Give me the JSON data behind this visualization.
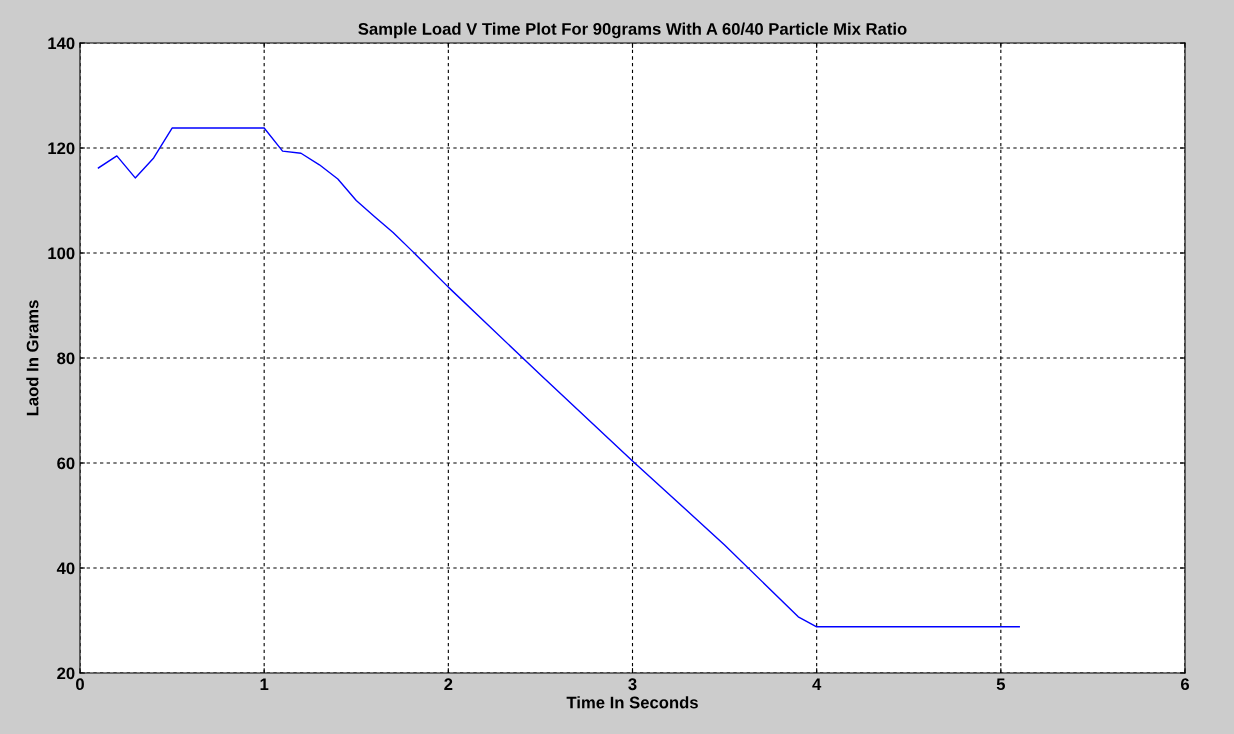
{
  "chart_data": {
    "type": "line",
    "title": "Sample Load V Time Plot For 90grams With A 60/40 Particle Mix Ratio",
    "xlabel": "Time In Seconds",
    "ylabel": "Laod In Grams",
    "x": [
      0.1,
      0.2,
      0.3,
      0.4,
      0.5,
      1.0,
      1.1,
      1.2,
      1.3,
      1.4,
      1.5,
      1.6,
      1.7,
      1.8,
      1.9,
      2.0,
      2.5,
      3.0,
      3.5,
      3.9,
      4.0,
      5.1
    ],
    "series": [
      {
        "color": "#0000ff",
        "values": [
          116.2,
          118.5,
          114.3,
          118.1,
          123.8,
          123.8,
          119.4,
          119.0,
          116.8,
          114.1,
          110.0,
          106.9,
          103.9,
          100.5,
          97.0,
          93.5,
          76.8,
          60.4,
          44.4,
          30.7,
          28.8,
          28.8
        ]
      }
    ],
    "xlim": [
      0,
      6
    ],
    "xticks": [
      0,
      1,
      2,
      3,
      4,
      5,
      6
    ],
    "ylim": [
      20,
      140
    ],
    "yticks": [
      20,
      40,
      60,
      80,
      100,
      120,
      140
    ],
    "grid": true,
    "marker": "none",
    "line_style": "solid"
  }
}
